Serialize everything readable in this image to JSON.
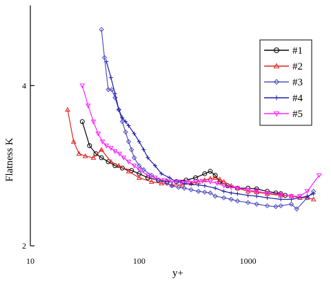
{
  "chart_data": {
    "type": "line",
    "title": "",
    "xlabel": "y+",
    "ylabel": "Flatness K",
    "xscale": "log",
    "xlim": [
      10,
      5000
    ],
    "ylim": [
      2,
      5
    ],
    "x_ticks": [
      10,
      100,
      1000
    ],
    "x_tick_labels": [
      "10",
      "100",
      "1000"
    ],
    "y_ticks": [
      2,
      4
    ],
    "y_tick_labels": [
      "2",
      "4"
    ],
    "grid": false,
    "legend_position": "top-right",
    "series": [
      {
        "name": "#1",
        "color": "#000000",
        "marker": "circle",
        "x": [
          30,
          35,
          40,
          45,
          52,
          60,
          70,
          85,
          100,
          120,
          150,
          180,
          220,
          270,
          330,
          400,
          450,
          500,
          550,
          650,
          800,
          1000,
          1200,
          1500,
          1800,
          2000,
          2200
        ],
        "y": [
          3.55,
          3.25,
          3.15,
          3.1,
          3.05,
          3.0,
          2.97,
          2.94,
          2.9,
          2.85,
          2.82,
          2.8,
          2.8,
          2.82,
          2.85,
          2.9,
          2.93,
          2.88,
          2.8,
          2.75,
          2.72,
          2.72,
          2.71,
          2.68,
          2.66,
          2.65,
          2.63
        ]
      },
      {
        "name": "#2",
        "color": "#e02020",
        "marker": "triangle-up",
        "x": [
          22,
          25,
          28,
          32,
          38,
          45,
          55,
          65,
          80,
          100,
          130,
          160,
          200,
          250,
          300,
          350,
          400,
          450,
          500,
          550,
          600,
          700,
          800,
          1000,
          1200,
          1500,
          2000,
          2500,
          3000,
          3500,
          4000
        ],
        "y": [
          3.7,
          3.3,
          3.15,
          3.12,
          3.1,
          3.2,
          3.05,
          3.0,
          2.93,
          2.85,
          2.8,
          2.78,
          2.76,
          2.76,
          2.78,
          2.8,
          2.82,
          2.84,
          2.85,
          2.83,
          2.8,
          2.75,
          2.72,
          2.68,
          2.67,
          2.65,
          2.63,
          2.62,
          2.6,
          2.6,
          2.58
        ]
      },
      {
        "name": "#3",
        "color": "#5050c0",
        "marker": "diamond",
        "x": [
          45,
          48,
          52,
          56,
          60,
          65,
          70,
          75,
          80,
          85,
          90,
          100,
          110,
          130,
          150,
          180,
          200,
          230,
          260,
          300,
          350,
          400,
          450,
          500,
          600,
          700,
          800,
          1000,
          1200,
          1500,
          1800,
          2000,
          2500,
          2800,
          3500,
          4000
        ],
        "y": [
          4.7,
          4.35,
          3.95,
          3.95,
          3.85,
          3.7,
          3.55,
          3.42,
          3.3,
          3.2,
          3.1,
          3.0,
          2.95,
          2.88,
          2.82,
          2.78,
          2.75,
          2.73,
          2.72,
          2.7,
          2.68,
          2.67,
          2.66,
          2.62,
          2.6,
          2.58,
          2.56,
          2.54,
          2.52,
          2.5,
          2.49,
          2.5,
          2.52,
          2.46,
          2.6,
          2.68
        ]
      },
      {
        "name": "#4",
        "color": "#1a1aaa",
        "marker": "plus",
        "x": [
          50,
          55,
          60,
          65,
          70,
          75,
          80,
          90,
          100,
          110,
          120,
          140,
          160,
          190,
          220,
          260,
          300,
          350,
          400,
          500,
          600,
          700,
          800,
          1000,
          1200,
          1500,
          2000,
          2500,
          3000,
          3500,
          4000
        ],
        "y": [
          4.3,
          4.1,
          3.9,
          3.7,
          3.6,
          3.55,
          3.5,
          3.4,
          3.3,
          3.2,
          3.1,
          3.0,
          2.9,
          2.85,
          2.8,
          2.78,
          2.77,
          2.76,
          2.75,
          2.72,
          2.68,
          2.66,
          2.65,
          2.63,
          2.62,
          2.6,
          2.58,
          2.58,
          2.6,
          2.62,
          2.65
        ]
      },
      {
        "name": "#5",
        "color": "#ff20ff",
        "marker": "triangle-down",
        "x": [
          30,
          34,
          38,
          42,
          46,
          50,
          55,
          60,
          66,
          72,
          80,
          90,
          100,
          120,
          140,
          170,
          200,
          240,
          280,
          330,
          380,
          450,
          520,
          600,
          700,
          800,
          1000,
          1200,
          1500,
          2000,
          2500,
          3000,
          3500,
          4500
        ],
        "y": [
          4.0,
          3.75,
          3.55,
          3.4,
          3.3,
          3.25,
          3.22,
          3.18,
          3.15,
          3.1,
          3.05,
          3.0,
          2.95,
          2.88,
          2.85,
          2.82,
          2.8,
          2.8,
          2.8,
          2.8,
          2.81,
          2.8,
          2.78,
          2.75,
          2.73,
          2.72,
          2.7,
          2.68,
          2.66,
          2.64,
          2.62,
          2.62,
          2.68,
          2.88
        ]
      }
    ]
  }
}
